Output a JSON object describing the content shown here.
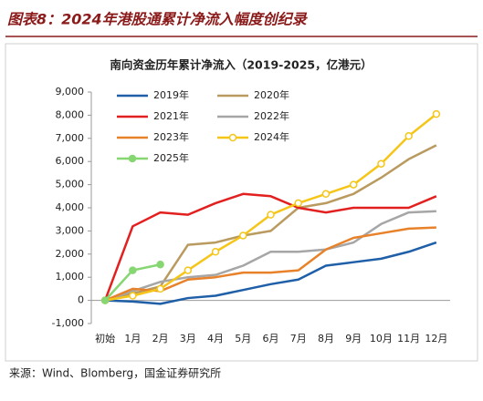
{
  "header": {
    "title": "图表8：2024年港股通累计净流入幅度创纪录"
  },
  "chart_data": {
    "type": "line",
    "title": "南向资金历年累计净流入（2019-2025，亿港元）",
    "categories": [
      "初始",
      "1月",
      "2月",
      "3月",
      "4月",
      "5月",
      "6月",
      "7月",
      "8月",
      "9月",
      "10月",
      "11月",
      "12月"
    ],
    "series": [
      {
        "name": "2019年",
        "color": "#1f5fa8",
        "values": [
          0,
          -50,
          -150,
          100,
          200,
          450,
          700,
          900,
          1500,
          1650,
          1800,
          2100,
          2500
        ]
      },
      {
        "name": "2020年",
        "color": "#b99a5f",
        "values": [
          0,
          300,
          600,
          2400,
          2500,
          2800,
          3000,
          4000,
          4200,
          4600,
          5300,
          6100,
          6700
        ]
      },
      {
        "name": "2021年",
        "color": "#e32020",
        "values": [
          0,
          3200,
          3800,
          3700,
          4200,
          4600,
          4500,
          4000,
          3800,
          4000,
          4000,
          4000,
          4500
        ]
      },
      {
        "name": "2022年",
        "color": "#a6a6a6",
        "values": [
          0,
          400,
          800,
          1000,
          1100,
          1500,
          2100,
          2100,
          2200,
          2500,
          3300,
          3800,
          3850
        ]
      },
      {
        "name": "2023年",
        "color": "#e8822a",
        "values": [
          0,
          500,
          400,
          900,
          1000,
          1200,
          1200,
          1300,
          2200,
          2700,
          2900,
          3100,
          3150
        ]
      },
      {
        "name": "2024年",
        "color": "#f5c518",
        "marker": "hollow-circle",
        "values": [
          0,
          200,
          500,
          1300,
          2100,
          2800,
          3700,
          4200,
          4600,
          5000,
          5900,
          7100,
          8050
        ]
      },
      {
        "name": "2025年",
        "color": "#86d672",
        "marker": "circle",
        "values": [
          0,
          1300,
          1550,
          null,
          null,
          null,
          null,
          null,
          null,
          null,
          null,
          null,
          null
        ]
      }
    ],
    "ylim": [
      -1000,
      9000
    ],
    "yticks": [
      {
        "value": -1000,
        "label": "-1,000"
      },
      0,
      {
        "value": 1000,
        "label": "1,000"
      },
      {
        "value": 2000,
        "label": "2,000"
      },
      {
        "value": 3000,
        "label": "3,000"
      },
      {
        "value": 4000,
        "label": "4,000"
      },
      {
        "value": 5000,
        "label": "5,000"
      },
      {
        "value": 6000,
        "label": "6,000"
      },
      {
        "value": 7000,
        "label": "7,000"
      },
      {
        "value": 8000,
        "label": "8,000"
      },
      {
        "value": 9000,
        "label": "9,000"
      }
    ],
    "source": "来源：Wind、Blomberg，国金证券研究所"
  }
}
